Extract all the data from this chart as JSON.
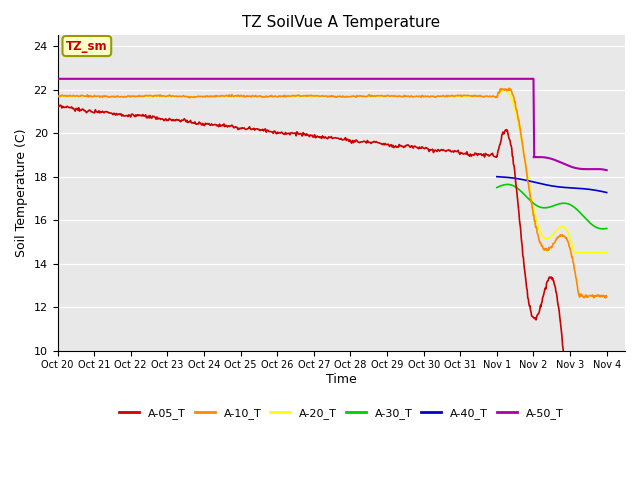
{
  "title": "TZ SoilVue A Temperature",
  "ylabel": "Soil Temperature (C)",
  "xlabel": "Time",
  "ylim": [
    10,
    24.5
  ],
  "bg_color": "#e8e8e8",
  "annotation_label": "TZ_sm",
  "annotation_bg": "#ffffcc",
  "annotation_border": "#999900",
  "series": {
    "A-05_T": {
      "color": "#cc0000",
      "lw": 1.2
    },
    "A-10_T": {
      "color": "#ff8800",
      "lw": 1.2
    },
    "A-20_T": {
      "color": "#ffff00",
      "lw": 1.2
    },
    "A-30_T": {
      "color": "#00cc00",
      "lw": 1.2
    },
    "A-40_T": {
      "color": "#0000cc",
      "lw": 1.2
    },
    "A-50_T": {
      "color": "#aa00aa",
      "lw": 1.5
    }
  },
  "tick_labels": [
    "Oct 20",
    "Oct 21",
    "Oct 22",
    "Oct 23",
    "Oct 24",
    "Oct 25",
    "Oct 26",
    "Oct 27",
    "Oct 28",
    "Oct 29",
    "Oct 30",
    "Oct 31",
    "Nov 1",
    "Nov 2",
    "Nov 3",
    "Nov 4"
  ],
  "yticks": [
    10,
    12,
    14,
    16,
    18,
    20,
    22,
    24
  ]
}
